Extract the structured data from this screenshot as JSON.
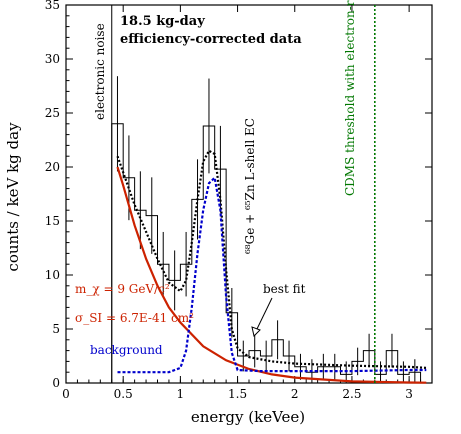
{
  "chart_data": {
    "type": "line",
    "title": "18.5 kg-day",
    "subtitle": "efficiency-corrected data",
    "xlabel": "energy (keVee)",
    "ylabel": "counts / keV kg day",
    "xlim": [
      0,
      3.2
    ],
    "ylim": [
      0,
      35
    ],
    "x_ticks": [
      "0",
      "0.5",
      "1",
      "1.5",
      "2",
      "2.5",
      "3"
    ],
    "y_ticks": [
      "0",
      "5",
      "10",
      "15",
      "20",
      "25",
      "30",
      "35"
    ],
    "annotations": {
      "noise": "electronic noise",
      "peak": "⁶⁸Ge + ⁶⁵Zn L-shell EC",
      "threshold": "CDMS threshold with electron-recoil rejection",
      "bestfit": "best fit",
      "mass": "m_χ = 9 GeV/c²",
      "sigma": "σ_SI = 6.7E-41 cm²",
      "background": "background"
    },
    "threshold_energy": 2.7,
    "data_histogram": {
      "bin_edges": [
        0.4,
        0.5,
        0.6,
        0.7,
        0.8,
        0.9,
        1.0,
        1.1,
        1.2,
        1.3,
        1.4,
        1.5,
        1.6,
        1.7,
        1.8,
        1.9,
        2.0,
        2.1,
        2.2,
        2.3,
        2.4,
        2.5,
        2.6,
        2.7,
        2.8,
        2.9,
        3.0,
        3.1
      ],
      "values": [
        24,
        19,
        16,
        15.5,
        11,
        9.5,
        11,
        17,
        23.8,
        19.8,
        6.5,
        2.5,
        3,
        2.5,
        4,
        2.5,
        1.5,
        1,
        1.5,
        1.5,
        0.8,
        2,
        3,
        0.8,
        3,
        0.8,
        1
      ]
    },
    "series": [
      {
        "name": "best fit",
        "color": "#000000",
        "dash": "dotted",
        "x": [
          0.45,
          0.5,
          0.6,
          0.7,
          0.8,
          0.9,
          1.0,
          1.05,
          1.1,
          1.15,
          1.2,
          1.25,
          1.3,
          1.35,
          1.4,
          1.45,
          1.5,
          1.6,
          1.8,
          2.0,
          2.5,
          3.0,
          3.15
        ],
        "y": [
          21,
          19.5,
          16.5,
          14,
          11.5,
          9.3,
          8.5,
          9.5,
          13,
          17,
          20.5,
          21.5,
          21.2,
          17,
          10.5,
          5,
          3.2,
          2.4,
          2,
          1.8,
          1.6,
          1.5,
          1.4
        ]
      },
      {
        "name": "m_χ = 9 GeV/c²",
        "color": "#cc2200",
        "dash": "solid",
        "x": [
          0.45,
          0.5,
          0.6,
          0.7,
          0.8,
          0.9,
          1.0,
          1.2,
          1.4,
          1.6,
          1.8,
          2.0,
          2.5,
          3.0,
          3.15
        ],
        "y": [
          20,
          18.3,
          14.6,
          11.5,
          9,
          7,
          5.6,
          3.4,
          2.1,
          1.3,
          0.8,
          0.5,
          0.15,
          0.05,
          0.03
        ]
      },
      {
        "name": "background",
        "color": "#0000cc",
        "dash": "dashed",
        "x": [
          0.45,
          0.7,
          0.9,
          1.0,
          1.05,
          1.1,
          1.15,
          1.2,
          1.25,
          1.3,
          1.35,
          1.4,
          1.45,
          1.5,
          1.7,
          2.0,
          2.5,
          3.0,
          3.15
        ],
        "y": [
          1,
          1,
          1,
          1.4,
          3,
          7,
          12,
          16,
          18.5,
          19,
          16,
          8,
          2.8,
          1.2,
          1.1,
          1.1,
          1.1,
          1.2,
          1.2
        ]
      }
    ],
    "colors": {
      "threshold": "#007700",
      "peak_label": "#000000",
      "signal_label": "#cc2200",
      "background_label": "#0000cc"
    }
  }
}
